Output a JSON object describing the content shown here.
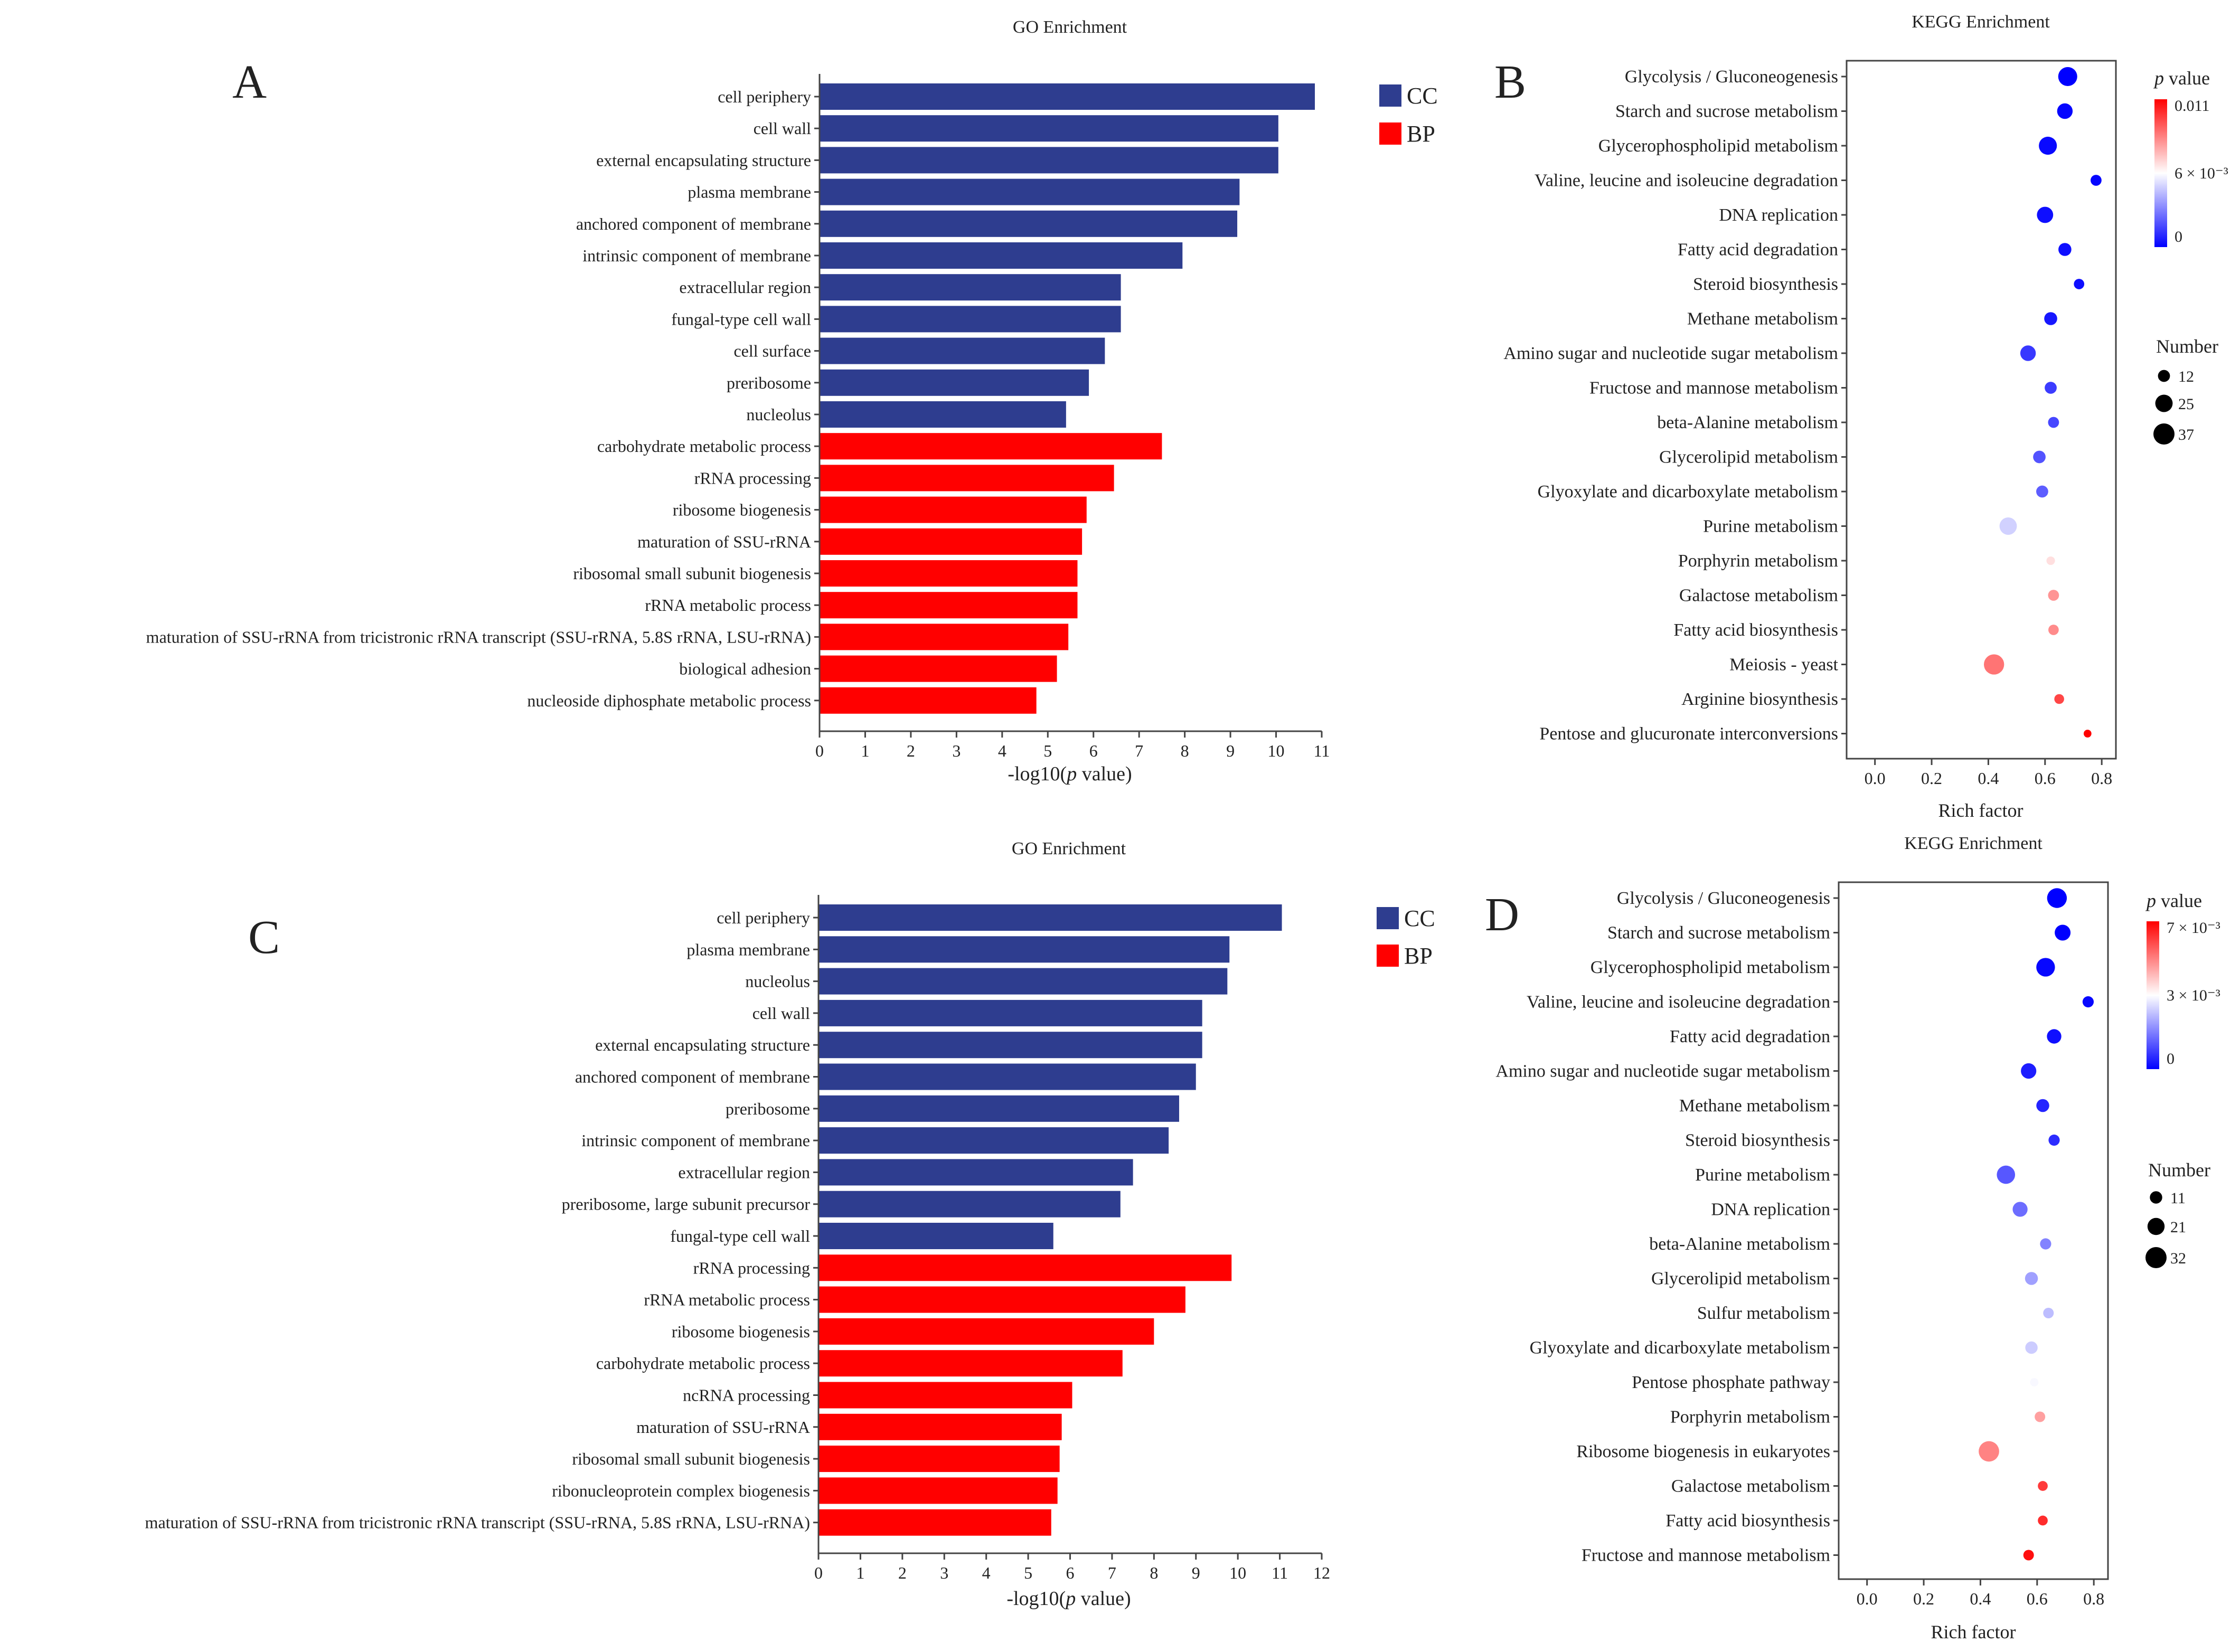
{
  "panel_letters": [
    "A",
    "B",
    "C",
    "D"
  ],
  "chart_data": [
    {
      "id": "A",
      "type": "bar",
      "orientation": "horizontal",
      "title": "GO Enrichment",
      "xlabel": "-log10(p value)",
      "xlim": [
        0,
        11
      ],
      "xticks": [
        "0",
        "1",
        "2",
        "3",
        "4",
        "5",
        "6",
        "7",
        "8",
        "9",
        "10",
        "11"
      ],
      "legend": [
        {
          "name": "CC",
          "color": "#2e3d8f"
        },
        {
          "name": "BP",
          "color": "#ff0000"
        }
      ],
      "categories": [
        "cell periphery",
        "cell wall",
        "external encapsulating structure",
        "plasma membrane",
        "anchored component of membrane",
        "intrinsic component of membrane",
        "extracellular region",
        "fungal-type cell wall",
        "cell surface",
        "preribosome",
        "nucleolus",
        "carbohydrate metabolic process",
        "rRNA processing",
        "ribosome biogenesis",
        "maturation of SSU-rRNA",
        "ribosomal small subunit biogenesis",
        "rRNA metabolic process",
        "maturation of SSU-rRNA from tricistronic rRNA transcript (SSU-rRNA, 5.8S rRNA, LSU-rRNA)",
        "biological adhesion",
        "nucleoside diphosphate metabolic process"
      ],
      "values": [
        10.85,
        10.05,
        10.05,
        9.2,
        9.15,
        7.95,
        6.6,
        6.6,
        6.25,
        5.9,
        5.4,
        7.5,
        6.45,
        5.85,
        5.75,
        5.65,
        5.65,
        5.45,
        5.2,
        4.75
      ],
      "groups": [
        "CC",
        "CC",
        "CC",
        "CC",
        "CC",
        "CC",
        "CC",
        "CC",
        "CC",
        "CC",
        "CC",
        "BP",
        "BP",
        "BP",
        "BP",
        "BP",
        "BP",
        "BP",
        "BP",
        "BP"
      ]
    },
    {
      "id": "B",
      "type": "scatter",
      "title": "KEGG Enrichment",
      "xlabel": "Rich factor",
      "xlim": [
        -0.1,
        0.85
      ],
      "xticks": [
        "0.0",
        "0.2",
        "0.4",
        "0.6",
        "0.8"
      ],
      "xtick_values": [
        0,
        0.2,
        0.4,
        0.6,
        0.8
      ],
      "color_legend": {
        "title_italic": "p",
        "title_rest": " value",
        "labels": [
          "0.011",
          "6 × 10⁻³",
          "0"
        ],
        "max": 0.011
      },
      "size_legend": {
        "title": "Number",
        "labels": [
          "12",
          "25",
          "37"
        ],
        "values": [
          12,
          25,
          37
        ]
      },
      "categories": [
        "Glycolysis / Gluconeogenesis",
        "Starch and sucrose metabolism",
        "Glycerophospholipid metabolism",
        "Valine, leucine and isoleucine degradation",
        "DNA replication",
        "Fatty acid degradation",
        "Steroid biosynthesis",
        "Methane metabolism",
        "Amino sugar and nucleotide sugar metabolism",
        "Fructose and mannose metabolism",
        "beta-Alanine metabolism",
        "Glycerolipid metabolism",
        "Glyoxylate and dicarboxylate metabolism",
        "Purine metabolism",
        "Porphyrin metabolism",
        "Galactose metabolism",
        "Fatty acid biosynthesis",
        "Meiosis - yeast",
        "Arginine biosynthesis",
        "Pentose and glucuronate interconversions"
      ],
      "x": [
        0.68,
        0.67,
        0.61,
        0.78,
        0.6,
        0.67,
        0.72,
        0.62,
        0.54,
        0.62,
        0.63,
        0.58,
        0.59,
        0.47,
        0.62,
        0.63,
        0.63,
        0.42,
        0.65,
        0.75
      ],
      "number": [
        30,
        20,
        27,
        10,
        22,
        14,
        9,
        14,
        20,
        12,
        10,
        13,
        12,
        25,
        6,
        10,
        9,
        34,
        8,
        5
      ],
      "pvalue": [
        0.0,
        0.0001,
        0.0002,
        0.0001,
        0.0003,
        0.0003,
        0.0003,
        0.0005,
        0.0012,
        0.0013,
        0.0015,
        0.0018,
        0.002,
        0.0045,
        0.0062,
        0.0078,
        0.008,
        0.0085,
        0.0095,
        0.011
      ]
    },
    {
      "id": "C",
      "type": "bar",
      "orientation": "horizontal",
      "title": "GO Enrichment",
      "xlabel": "-log10(p value)",
      "xlim": [
        0,
        12
      ],
      "xticks": [
        "0",
        "1",
        "2",
        "3",
        "4",
        "5",
        "6",
        "7",
        "8",
        "9",
        "10",
        "11",
        "12"
      ],
      "legend": [
        {
          "name": "CC",
          "color": "#2e3d8f"
        },
        {
          "name": "BP",
          "color": "#ff0000"
        }
      ],
      "categories": [
        "cell periphery",
        "plasma membrane",
        "nucleolus",
        "cell wall",
        "external encapsulating structure",
        "anchored component of membrane",
        "preribosome",
        "intrinsic component of membrane",
        "extracellular region",
        "preribosome, large subunit precursor",
        "fungal-type cell wall",
        "rRNA processing",
        "rRNA metabolic process",
        "ribosome biogenesis",
        "carbohydrate metabolic process",
        "ncRNA processing",
        "maturation of SSU-rRNA",
        "ribosomal small subunit biogenesis",
        "ribonucleoprotein complex biogenesis",
        "maturation of SSU-rRNA from tricistronic rRNA transcript (SSU-rRNA, 5.8S rRNA, LSU-rRNA)"
      ],
      "values": [
        11.05,
        9.8,
        9.75,
        9.15,
        9.15,
        9.0,
        8.6,
        8.35,
        7.5,
        7.2,
        5.6,
        9.85,
        8.75,
        8.0,
        7.25,
        6.05,
        5.8,
        5.75,
        5.7,
        5.55
      ],
      "groups": [
        "CC",
        "CC",
        "CC",
        "CC",
        "CC",
        "CC",
        "CC",
        "CC",
        "CC",
        "CC",
        "CC",
        "BP",
        "BP",
        "BP",
        "BP",
        "BP",
        "BP",
        "BP",
        "BP",
        "BP"
      ]
    },
    {
      "id": "D",
      "type": "scatter",
      "title": "KEGG Enrichment",
      "xlabel": "Rich factor",
      "xlim": [
        -0.1,
        0.85
      ],
      "xticks": [
        "0.0",
        "0.2",
        "0.4",
        "0.6",
        "0.8"
      ],
      "xtick_values": [
        0,
        0.2,
        0.4,
        0.6,
        0.8
      ],
      "color_legend": {
        "title_italic": "p",
        "title_rest": " value",
        "labels": [
          "7 × 10⁻³",
          "3 × 10⁻³",
          "0"
        ],
        "max": 0.007
      },
      "size_legend": {
        "title": "Number",
        "labels": [
          "11",
          "21",
          "32"
        ],
        "values": [
          11,
          21,
          32
        ]
      },
      "categories": [
        "Glycolysis / Gluconeogenesis",
        "Starch and sucrose metabolism",
        "Glycerophospholipid metabolism",
        "Valine, leucine and isoleucine degradation",
        "Fatty acid degradation",
        "Amino sugar and nucleotide sugar metabolism",
        "Methane metabolism",
        "Steroid biosynthesis",
        "Purine metabolism",
        "DNA replication",
        "beta-Alanine metabolism",
        "Glycerolipid metabolism",
        "Sulfur metabolism",
        "Glyoxylate and dicarboxylate metabolism",
        "Pentose phosphate pathway",
        "Porphyrin metabolism",
        "Ribosome biogenesis in eukaryotes",
        "Galactose metabolism",
        "Fatty acid biosynthesis",
        "Fructose and mannose metabolism"
      ],
      "x": [
        0.67,
        0.69,
        0.63,
        0.78,
        0.66,
        0.57,
        0.62,
        0.66,
        0.49,
        0.54,
        0.63,
        0.58,
        0.64,
        0.58,
        0.59,
        0.61,
        0.43,
        0.62,
        0.62,
        0.57
      ],
      "number": [
        28,
        18,
        25,
        9,
        15,
        17,
        12,
        9,
        24,
        16,
        9,
        12,
        8,
        11,
        5,
        8,
        30,
        7,
        7,
        8
      ],
      "pvalue": [
        0.0,
        0.0,
        0.0001,
        0.0001,
        0.0002,
        0.0004,
        0.0005,
        0.0006,
        0.0012,
        0.0015,
        0.0018,
        0.0022,
        0.0026,
        0.0028,
        0.0034,
        0.0048,
        0.0052,
        0.0062,
        0.0064,
        0.0068
      ]
    }
  ]
}
